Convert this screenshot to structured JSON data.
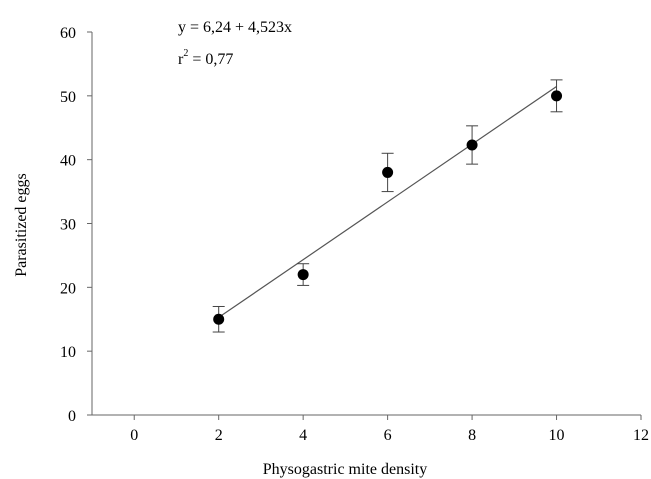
{
  "chart_data": {
    "type": "scatter",
    "xlabel": "Physogastric mite density",
    "ylabel": "Parasitized eggs",
    "xlim": [
      -1,
      12
    ],
    "ylim": [
      0,
      60
    ],
    "x_ticks": [
      0,
      2,
      4,
      6,
      8,
      10,
      12
    ],
    "y_ticks": [
      0,
      10,
      20,
      30,
      40,
      50,
      60
    ],
    "x_tick_labels": [
      "0",
      "2",
      "4",
      "6",
      "8",
      "10",
      "12"
    ],
    "y_tick_labels": [
      "0",
      "10",
      "20",
      "30",
      "40",
      "50",
      "60"
    ],
    "grid": false,
    "series": [
      {
        "x": [
          2,
          4,
          6,
          8,
          10
        ],
        "y": [
          15,
          22,
          38,
          42.3,
          50
        ],
        "error": [
          2,
          1.7,
          3,
          3,
          2.5
        ],
        "marker_color": "#000000"
      }
    ],
    "trendline": {
      "intercept": 6.24,
      "slope": 4.523,
      "x_range": [
        2,
        10
      ],
      "color": "#555555"
    },
    "annotations": {
      "equation": "y = 6,24 + 4,523x",
      "r2_prefix": "r",
      "r2_sup": "2",
      "r2_value": " = 0,77"
    }
  }
}
